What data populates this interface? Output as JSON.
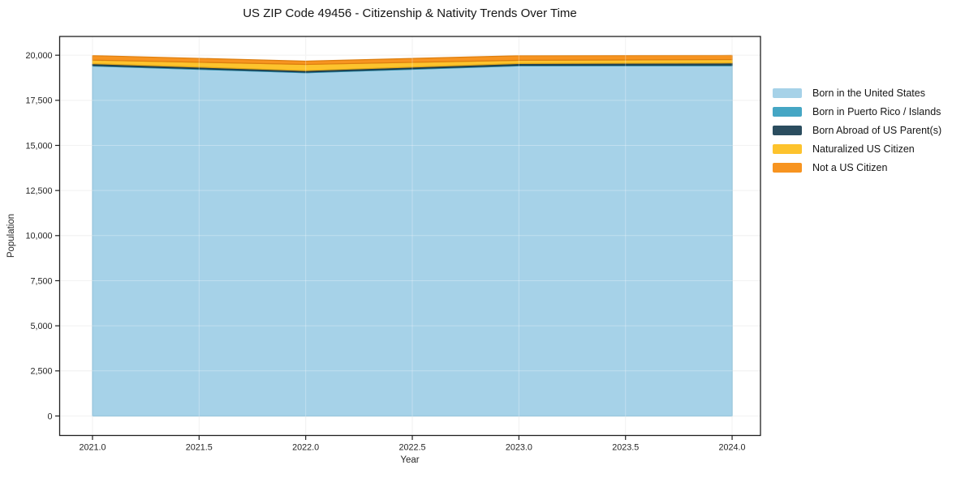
{
  "title": "US ZIP Code 49456 - Citizenship & Nativity Trends Over Time",
  "chart_data": {
    "type": "area",
    "stacked": true,
    "title": "US ZIP Code 49456 - Citizenship & Nativity Trends Over Time",
    "xlabel": "Year",
    "ylabel": "Population",
    "x": [
      2021,
      2022,
      2023,
      2024
    ],
    "series": [
      {
        "name": "Born in the United States",
        "color": "#a6d2e8",
        "edge": "#79b4d0",
        "values": [
          19400,
          19030,
          19410,
          19420
        ]
      },
      {
        "name": "Born in Puerto Rico / Islands",
        "color": "#45a6c4",
        "edge": "#2d89a7",
        "values": [
          40,
          40,
          40,
          40
        ]
      },
      {
        "name": "Born Abroad of US Parent(s)",
        "color": "#2b4d5f",
        "edge": "#1b3642",
        "values": [
          90,
          80,
          90,
          110
        ]
      },
      {
        "name": "Naturalized US Citizen",
        "color": "#fdc32d",
        "edge": "#e2a815",
        "values": [
          200,
          340,
          180,
          190
        ]
      },
      {
        "name": "Not a US Citizen",
        "color": "#f79420",
        "edge": "#dd7e0e",
        "values": [
          250,
          180,
          250,
          230
        ]
      }
    ],
    "xticks": [
      2021.0,
      2021.5,
      2022.0,
      2022.5,
      2023.0,
      2023.5,
      2024.0
    ],
    "xtick_labels": [
      "2021.0",
      "2021.5",
      "2022.0",
      "2022.5",
      "2023.0",
      "2023.5",
      "2024.0"
    ],
    "yticks": [
      0,
      2500,
      5000,
      7500,
      10000,
      12500,
      15000,
      17500,
      20000
    ],
    "ytick_labels": [
      "0",
      "2,500",
      "5,000",
      "7,500",
      "10,000",
      "12,500",
      "15,000",
      "17,500",
      "20,000"
    ],
    "xlim": [
      2020.846,
      2024.133
    ],
    "ylim": [
      -1080,
      21040
    ],
    "grid": true,
    "legend_position": "right"
  }
}
